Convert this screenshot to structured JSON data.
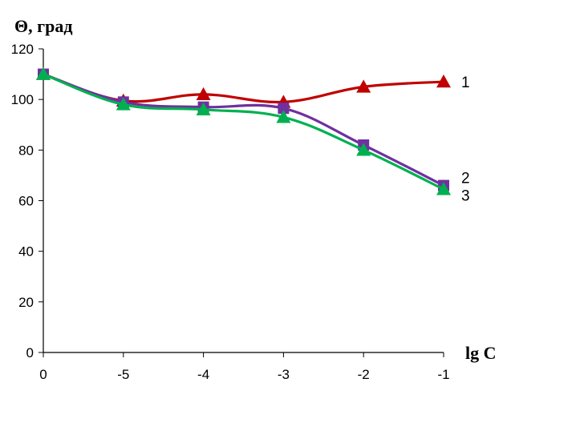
{
  "chart_data": {
    "type": "line",
    "ylabel": "Θ, град",
    "xlabel": "lg C",
    "categories": [
      "0",
      "-5",
      "-4",
      "-3",
      "-2",
      "-1"
    ],
    "yticks": [
      "0",
      "20",
      "40",
      "60",
      "80",
      "100",
      "120"
    ],
    "ylim": [
      0,
      120
    ],
    "grid": false,
    "series": [
      {
        "name": "1",
        "color": "#c00000",
        "marker": "triangle",
        "values": [
          110,
          99.5,
          102,
          99,
          105,
          107
        ]
      },
      {
        "name": "2",
        "color": "#7030a0",
        "marker": "square",
        "values": [
          110,
          99,
          97,
          96.5,
          82,
          66
        ]
      },
      {
        "name": "3",
        "color": "#00b050",
        "marker": "triangle",
        "values": [
          110,
          98,
          96,
          93,
          80,
          64.5
        ]
      }
    ]
  }
}
